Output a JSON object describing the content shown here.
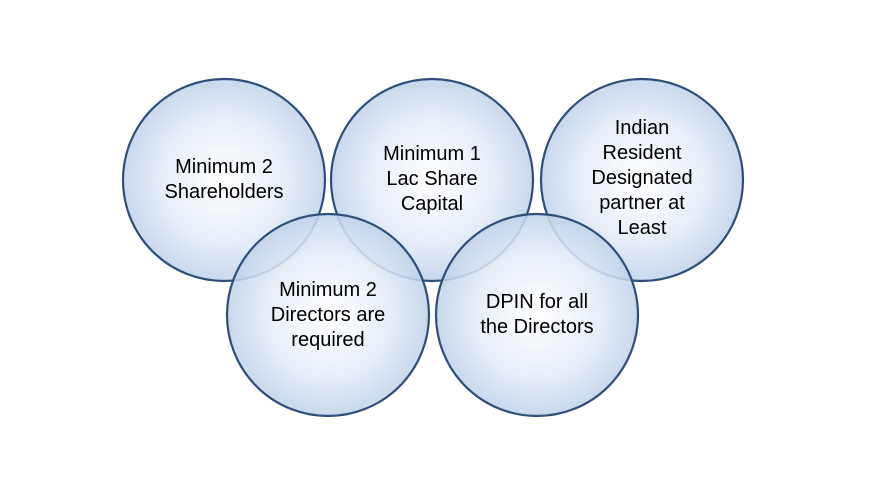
{
  "diagram": {
    "circles": [
      {
        "id": "shareholders",
        "label": "Minimum 2\nShareholders"
      },
      {
        "id": "share-capital",
        "label": "Minimum 1\nLac Share\nCapital"
      },
      {
        "id": "resident-partner",
        "label": "Indian\nResident\nDesignated\npartner at\nLeast"
      },
      {
        "id": "directors",
        "label": "Minimum 2\nDirectors are\nrequired"
      },
      {
        "id": "dpin",
        "label": "DPIN for all\nthe Directors"
      }
    ],
    "colors": {
      "fill_center": "#ffffff",
      "fill_mid": "#e3ebf6",
      "fill_edge": "#c2d2ea",
      "stroke": "#2f4f7a"
    }
  }
}
